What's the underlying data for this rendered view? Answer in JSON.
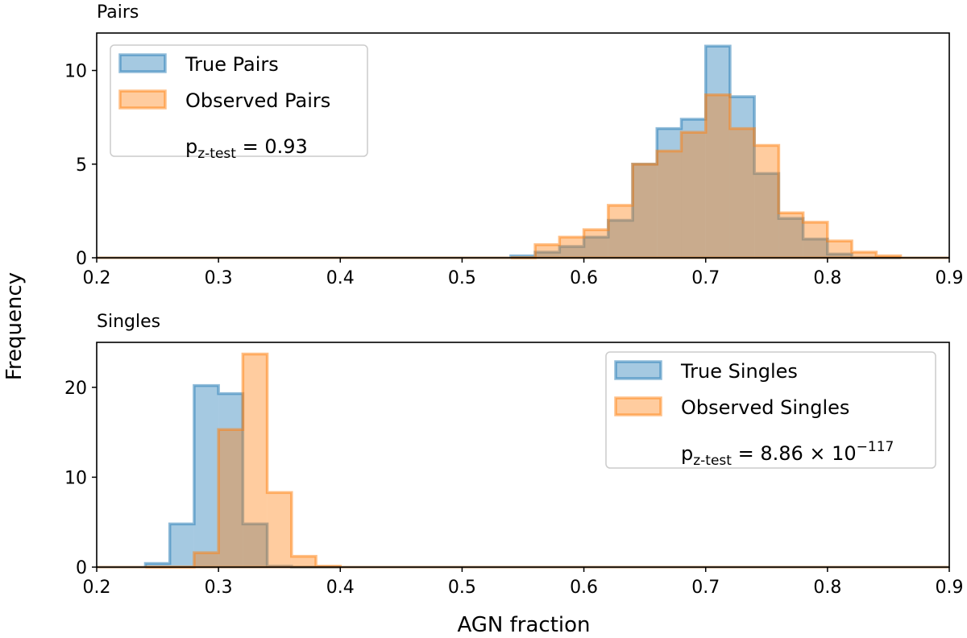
{
  "figure": {
    "ylabel": "Frequency",
    "xlabel": "AGN fraction"
  },
  "colors": {
    "true": "#1f77b4",
    "observed": "#ff7f0e"
  },
  "chart_data": [
    {
      "type": "bar",
      "panel_title": "Pairs",
      "xlim": [
        0.2,
        0.9
      ],
      "ylim": [
        0,
        12
      ],
      "xticks": [
        "0.2",
        "0.3",
        "0.4",
        "0.5",
        "0.6",
        "0.7",
        "0.8",
        "0.9"
      ],
      "yticks": [
        "0",
        "5",
        "10"
      ],
      "legend_position": "top-left",
      "pvalue_label": "p",
      "pvalue_sub": "z-test",
      "pvalue_value": " = 0.93",
      "pvalue_exp": "",
      "bin_edges": [
        0.54,
        0.56,
        0.58,
        0.6,
        0.62,
        0.64,
        0.66,
        0.68,
        0.7,
        0.72,
        0.74,
        0.76,
        0.78,
        0.8,
        0.82,
        0.84,
        0.86
      ],
      "series": [
        {
          "name": "True Pairs",
          "key": "true",
          "values": [
            0.1,
            0.3,
            0.6,
            1.1,
            2.0,
            5.0,
            6.9,
            7.4,
            11.3,
            8.6,
            4.5,
            2.1,
            1.0,
            0.2,
            0.0,
            0.0
          ]
        },
        {
          "name": "Observed Pairs",
          "key": "observed",
          "values": [
            0.0,
            0.7,
            1.1,
            1.5,
            2.8,
            5.0,
            5.7,
            6.7,
            8.7,
            6.9,
            6.0,
            2.4,
            1.9,
            0.9,
            0.3,
            0.1
          ]
        }
      ]
    },
    {
      "type": "bar",
      "panel_title": "Singles",
      "xlim": [
        0.2,
        0.9
      ],
      "ylim": [
        0,
        25
      ],
      "xticks": [
        "0.2",
        "0.3",
        "0.4",
        "0.5",
        "0.6",
        "0.7",
        "0.8",
        "0.9"
      ],
      "yticks": [
        "0",
        "10",
        "20"
      ],
      "legend_position": "top-right",
      "pvalue_label": "p",
      "pvalue_sub": "z-test",
      "pvalue_value": " = 8.86 × 10",
      "pvalue_exp": "−117",
      "bin_edges": [
        0.24,
        0.26,
        0.28,
        0.3,
        0.32,
        0.34,
        0.36,
        0.38,
        0.4
      ],
      "series": [
        {
          "name": "True Singles",
          "key": "true",
          "values": [
            0.4,
            4.8,
            20.2,
            19.3,
            4.8,
            0.1,
            0.0,
            0.0
          ]
        },
        {
          "name": "Observed Singles",
          "key": "observed",
          "values": [
            0.0,
            0.0,
            1.6,
            15.3,
            23.7,
            8.3,
            1.2,
            0.1
          ]
        }
      ]
    }
  ]
}
